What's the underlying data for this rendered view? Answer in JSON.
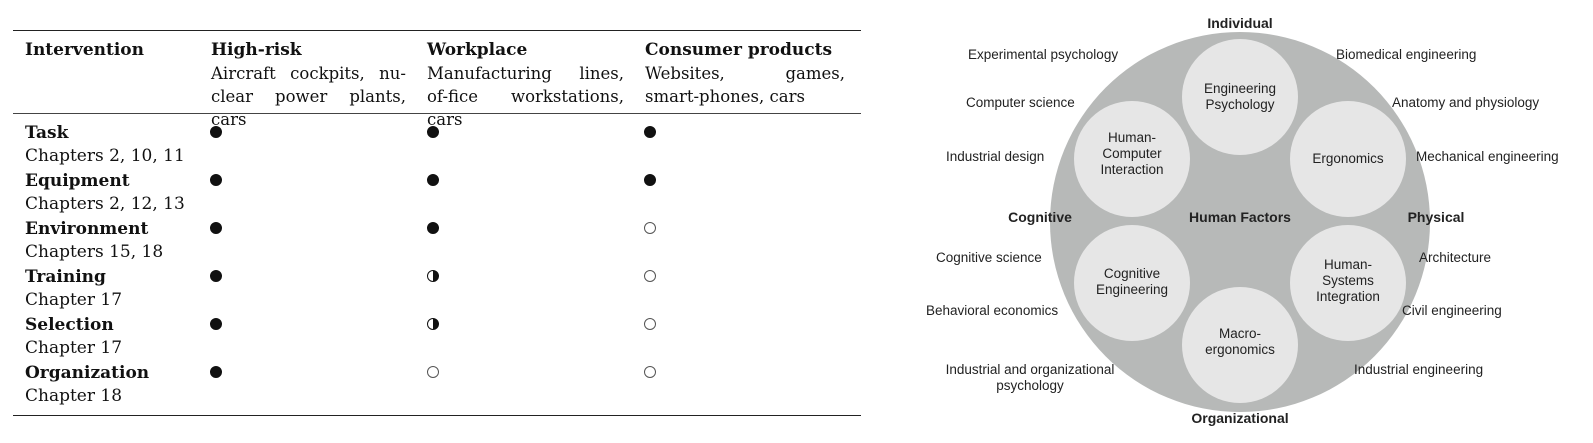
{
  "table": {
    "columns": [
      {
        "heading": "Intervention",
        "examples": ""
      },
      {
        "heading": "High-risk",
        "examples": "Aircraft cockpits, nu-clear power plants, cars"
      },
      {
        "heading": "Workplace",
        "examples": "Manufacturing lines, of-fice workstations, cars"
      },
      {
        "heading": "Consumer products",
        "examples": "Websites, games, smart-phones, cars"
      }
    ],
    "rows": [
      {
        "name": "Task",
        "chapters": "Chapters 2, 10, 11",
        "levels": [
          "full",
          "full",
          "full"
        ]
      },
      {
        "name": "Equipment",
        "chapters": "Chapters 2, 12, 13",
        "levels": [
          "full",
          "full",
          "full"
        ]
      },
      {
        "name": "Environment",
        "chapters": "Chapters 15, 18",
        "levels": [
          "full",
          "full",
          "empty"
        ]
      },
      {
        "name": "Training",
        "chapters": "Chapter 17",
        "levels": [
          "full",
          "half",
          "empty"
        ]
      },
      {
        "name": "Selection",
        "chapters": "Chapter 17",
        "levels": [
          "full",
          "half",
          "empty"
        ]
      },
      {
        "name": "Organization",
        "chapters": "Chapter 18",
        "levels": [
          "full",
          "empty",
          "empty"
        ]
      }
    ]
  },
  "diagram": {
    "center_label": "Human Factors",
    "axis_labels": {
      "top": "Individual",
      "bottom": "Organizational",
      "left": "Cognitive",
      "right": "Physical"
    },
    "inner_circles": [
      "Engineering\nPsychology",
      "Ergonomics",
      "Human-\nSystems\nIntegration",
      "Macro-\nergonomics",
      "Cognitive\nEngineering",
      "Human-\nComputer\nInteraction"
    ],
    "left_disciplines": [
      "Experimental psychology",
      "Computer science",
      "Industrial design",
      "Cognitive science",
      "Behavioral economics",
      "Industrial and organizational\npsychology"
    ],
    "right_disciplines": [
      "Biomedical engineering",
      "Anatomy and physiology",
      "Mechanical engineering",
      "Architecture",
      "Civil engineering",
      "Industrial engineering"
    ],
    "colors": {
      "outer_circle": "#b7b9b8",
      "inner_circle": "#e6e6e6"
    }
  }
}
